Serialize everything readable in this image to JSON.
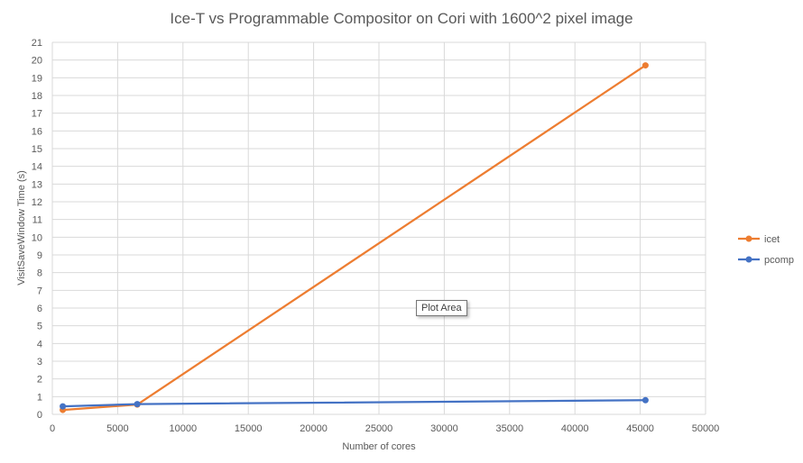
{
  "chart_data": {
    "type": "line",
    "title": "Ice-T vs Programmable Compositor on Cori with 1600^2 pixel image",
    "xlabel": "Number of cores",
    "ylabel": "VisitSaveWindow Time (s)",
    "xlim": [
      0,
      50000
    ],
    "ylim": [
      0,
      21
    ],
    "x_ticks": [
      "0",
      "5000",
      "10000",
      "15000",
      "20000",
      "25000",
      "30000",
      "35000",
      "40000",
      "45000",
      "50000"
    ],
    "y_ticks": [
      "0",
      "1",
      "2",
      "3",
      "4",
      "5",
      "6",
      "7",
      "8",
      "9",
      "10",
      "11",
      "12",
      "13",
      "14",
      "15",
      "16",
      "17",
      "18",
      "19",
      "20",
      "21"
    ],
    "grid": true,
    "legend_position": "right",
    "series": [
      {
        "name": "icet",
        "color": "#ED7D31",
        "x": [
          800,
          6500,
          45400
        ],
        "y": [
          0.25,
          0.55,
          19.7
        ]
      },
      {
        "name": "pcomp",
        "color": "#4472C4",
        "x": [
          800,
          6500,
          45400
        ],
        "y": [
          0.45,
          0.58,
          0.8
        ]
      }
    ]
  },
  "tooltip": {
    "label": "Plot Area"
  },
  "colors": {
    "grid": "#D9D9D9",
    "text": "#595959"
  }
}
